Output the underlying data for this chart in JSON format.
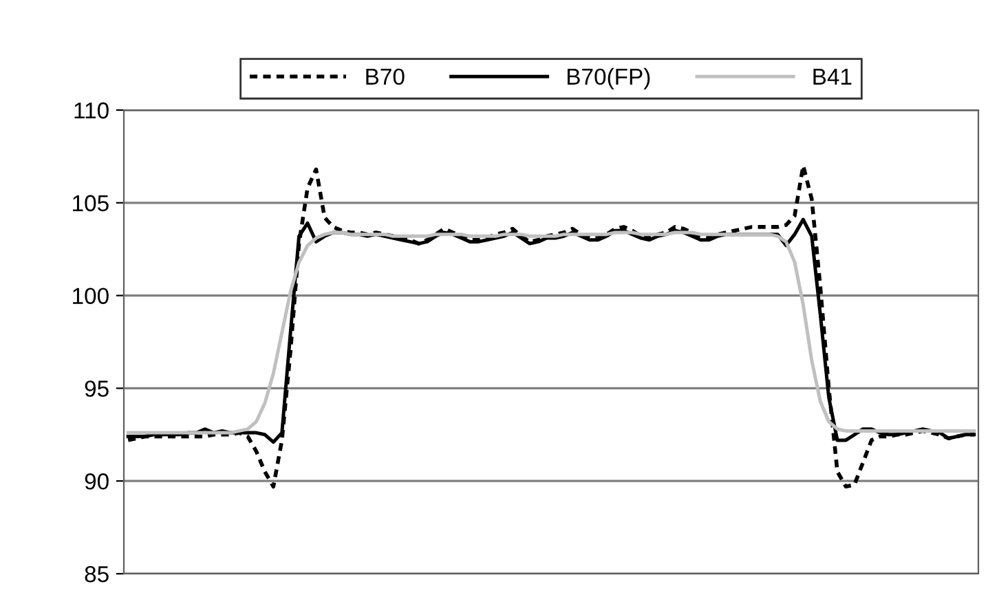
{
  "chart_data": {
    "type": "line",
    "categories": [
      null,
      null,
      null,
      null,
      null,
      null,
      null,
      null,
      null,
      null,
      null,
      null,
      null,
      null,
      null,
      null,
      null,
      null,
      null,
      null,
      null,
      null,
      null,
      null,
      null,
      null,
      null,
      null,
      null,
      null,
      null,
      null,
      null,
      null,
      null,
      null,
      null,
      null,
      null,
      null,
      null,
      null,
      null,
      null,
      null,
      null,
      null,
      null,
      null,
      null,
      null,
      null,
      null,
      null,
      null,
      null,
      null,
      null,
      null,
      null,
      null,
      null,
      null,
      null,
      null,
      null,
      null,
      null,
      null,
      null,
      null,
      null,
      null,
      null,
      null,
      null,
      null,
      null,
      null,
      null,
      null,
      null,
      null,
      null,
      null,
      null,
      null,
      null,
      null,
      null,
      null,
      null,
      null,
      null,
      null,
      null,
      null,
      null,
      null,
      null
    ],
    "series": [
      {
        "name": "B70",
        "color": "#000000",
        "line_style": "dotted",
        "values": [
          92.2,
          92.3,
          92.4,
          92.4,
          92.4,
          92.4,
          92.4,
          92.4,
          92.4,
          92.4,
          92.5,
          92.5,
          92.5,
          92.6,
          92.4,
          91.6,
          90.5,
          89.7,
          92.2,
          97.0,
          102.8,
          105.8,
          106.8,
          104.2,
          103.7,
          103.5,
          103.4,
          103.4,
          103.3,
          103.4,
          103.3,
          103.2,
          103.1,
          103.0,
          102.8,
          103.0,
          103.3,
          103.6,
          103.4,
          103.2,
          103.0,
          103.0,
          103.1,
          103.3,
          103.4,
          103.6,
          103.2,
          102.9,
          103.0,
          103.2,
          103.3,
          103.4,
          103.6,
          103.3,
          103.1,
          103.1,
          103.3,
          103.6,
          103.7,
          103.5,
          103.2,
          103.1,
          103.3,
          103.4,
          103.7,
          103.6,
          103.4,
          103.2,
          103.1,
          103.3,
          103.4,
          103.5,
          103.6,
          103.7,
          103.7,
          103.7,
          103.7,
          103.8,
          104.3,
          107.0,
          105.2,
          100.5,
          95.0,
          90.5,
          89.7,
          89.8,
          91.0,
          92.2,
          92.4,
          92.4,
          92.5,
          92.5,
          92.6,
          92.7,
          92.6,
          92.5,
          92.3,
          92.4,
          92.5,
          92.5
        ]
      },
      {
        "name": "B70(FP)",
        "color": "#000000",
        "line_style": "solid",
        "values": [
          92.4,
          92.4,
          92.4,
          92.5,
          92.5,
          92.5,
          92.5,
          92.6,
          92.6,
          92.8,
          92.6,
          92.7,
          92.6,
          92.6,
          92.6,
          92.6,
          92.5,
          92.1,
          92.6,
          98.0,
          103.2,
          103.9,
          102.9,
          103.2,
          103.4,
          103.4,
          103.3,
          103.3,
          103.2,
          103.3,
          103.2,
          103.1,
          103.0,
          102.9,
          102.8,
          102.9,
          103.2,
          103.4,
          103.3,
          103.1,
          102.9,
          102.9,
          103.0,
          103.1,
          103.2,
          103.4,
          103.1,
          102.8,
          102.9,
          103.1,
          103.1,
          103.2,
          103.4,
          103.2,
          103.0,
          103.0,
          103.2,
          103.5,
          103.5,
          103.3,
          103.1,
          103.0,
          103.2,
          103.3,
          103.5,
          103.4,
          103.2,
          103.0,
          103.0,
          103.2,
          103.3,
          103.3,
          103.3,
          103.3,
          103.3,
          103.3,
          103.3,
          102.7,
          103.3,
          104.1,
          103.2,
          99.0,
          94.5,
          92.2,
          92.2,
          92.5,
          92.8,
          92.8,
          92.6,
          92.5,
          92.5,
          92.6,
          92.7,
          92.8,
          92.7,
          92.6,
          92.3,
          92.4,
          92.5,
          92.5
        ]
      },
      {
        "name": "B41",
        "color": "#c0c0c0",
        "line_style": "solid",
        "values": [
          92.6,
          92.6,
          92.6,
          92.6,
          92.6,
          92.6,
          92.6,
          92.6,
          92.6,
          92.6,
          92.6,
          92.6,
          92.6,
          92.7,
          92.8,
          93.2,
          94.2,
          95.8,
          98.0,
          100.2,
          101.8,
          102.7,
          103.1,
          103.3,
          103.4,
          103.4,
          103.3,
          103.3,
          103.3,
          103.3,
          103.3,
          103.2,
          103.2,
          103.2,
          103.2,
          103.2,
          103.3,
          103.3,
          103.3,
          103.3,
          103.2,
          103.2,
          103.2,
          103.2,
          103.3,
          103.3,
          103.3,
          103.2,
          103.2,
          103.2,
          103.2,
          103.3,
          103.3,
          103.3,
          103.3,
          103.3,
          103.3,
          103.4,
          103.4,
          103.4,
          103.3,
          103.3,
          103.3,
          103.3,
          103.4,
          103.4,
          103.4,
          103.3,
          103.3,
          103.3,
          103.3,
          103.3,
          103.3,
          103.3,
          103.3,
          103.3,
          103.2,
          102.9,
          101.8,
          99.5,
          96.5,
          94.3,
          93.2,
          92.8,
          92.7,
          92.7,
          92.7,
          92.7,
          92.7,
          92.7,
          92.7,
          92.7,
          92.7,
          92.7,
          92.7,
          92.7,
          92.7,
          92.7,
          92.7,
          92.7
        ]
      }
    ],
    "ylim": [
      85,
      110
    ],
    "yticks": [
      85,
      90,
      95,
      100,
      105,
      110
    ],
    "grid": "y",
    "legend": "top",
    "tick_labels": "y",
    "marker": "none"
  }
}
